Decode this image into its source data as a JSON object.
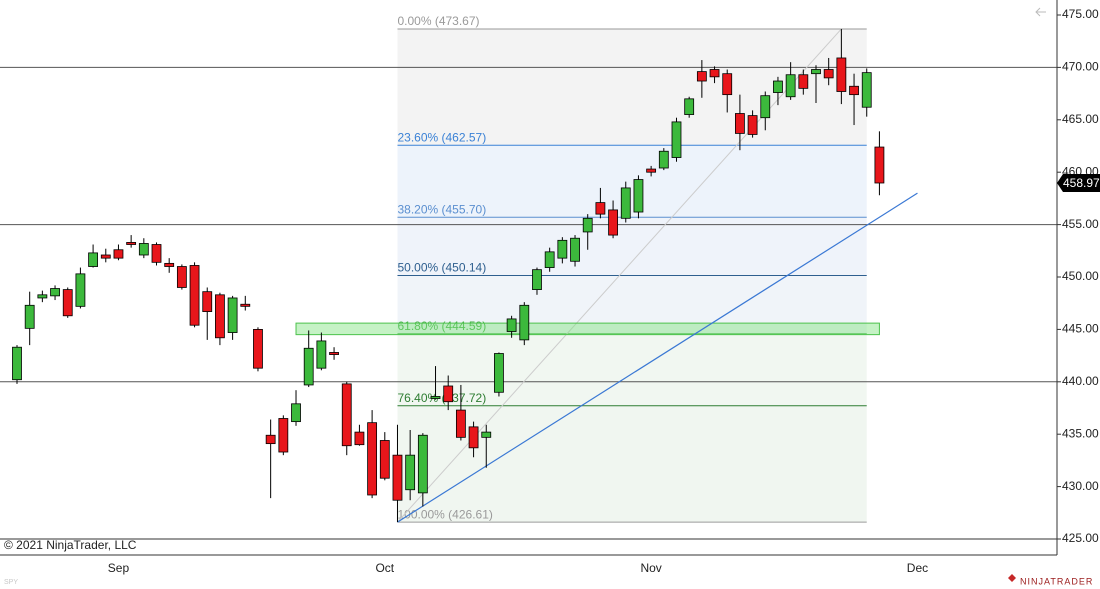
{
  "chart_data": {
    "type": "candlestick",
    "instrument": "SPY",
    "copyright": "© 2021 NinjaTrader, LLC",
    "brand": "NINJATRADER",
    "categories": [
      null,
      null,
      null,
      null,
      null,
      null,
      null,
      null,
      "Sep",
      null,
      null,
      null,
      null,
      null,
      null,
      null,
      null,
      null,
      null,
      null,
      null,
      null,
      null,
      null,
      null,
      null,
      null,
      null,
      null,
      "Oct",
      null,
      null,
      null,
      null,
      null,
      null,
      null,
      null,
      null,
      null,
      null,
      null,
      null,
      null,
      null,
      null,
      null,
      null,
      null,
      null,
      "Nov",
      null,
      null,
      null,
      null,
      null,
      null,
      null,
      null,
      null,
      null,
      null,
      null,
      null,
      null,
      null,
      null,
      null,
      null,
      null,
      null,
      "Dec"
    ],
    "open": [
      440.2,
      445.1,
      448.0,
      448.2,
      448.8,
      447.2,
      451.0,
      452.1,
      452.6,
      453.3,
      452.1,
      453.1,
      451.3,
      451.0,
      451.1,
      448.6,
      448.3,
      444.7,
      447.4,
      445.0,
      434.9,
      436.5,
      436.2,
      439.7,
      441.3,
      442.8,
      439.8,
      435.2,
      436.1,
      434.4,
      433.0,
      429.7,
      429.4,
      438.4,
      439.6,
      437.3,
      435.7,
      434.7,
      439.0,
      444.8,
      444.0,
      448.8,
      450.9,
      451.8,
      451.5,
      454.3,
      457.1,
      456.4,
      455.6,
      456.2,
      460.3,
      460.4,
      461.4,
      465.5,
      469.6,
      469.8,
      469.4,
      465.6,
      465.4,
      465.2,
      467.6,
      467.2,
      469.3,
      469.4,
      469.8,
      470.9,
      468.2,
      466.2,
      462.4,
      null,
      null,
      null
    ],
    "high": [
      443.5,
      448.6,
      448.7,
      449.2,
      449.0,
      450.9,
      453.1,
      452.7,
      453.1,
      454.0,
      453.7,
      453.3,
      451.8,
      451.2,
      451.4,
      449.0,
      448.5,
      448.2,
      448.2,
      445.2,
      436.4,
      436.8,
      439.2,
      444.9,
      444.7,
      443.3,
      440.0,
      435.9,
      437.3,
      435.2,
      435.9,
      435.4,
      435.1,
      441.5,
      440.6,
      439.7,
      436.2,
      435.9,
      442.8,
      446.3,
      447.6,
      450.9,
      452.8,
      453.8,
      454.0,
      456.0,
      458.5,
      457.3,
      459.1,
      459.7,
      460.6,
      462.3,
      465.2,
      467.2,
      470.7,
      470.1,
      469.8,
      467.4,
      465.9,
      467.7,
      469.1,
      470.5,
      469.8,
      470.2,
      470.9,
      473.67,
      469.4,
      469.9,
      463.9,
      null,
      null,
      null
    ],
    "low": [
      439.8,
      443.5,
      447.6,
      447.8,
      446.1,
      447.0,
      450.9,
      451.4,
      451.6,
      452.8,
      451.8,
      451.1,
      450.4,
      448.8,
      445.2,
      444.0,
      443.5,
      444.0,
      446.8,
      441.0,
      428.9,
      433.0,
      435.8,
      439.5,
      441.1,
      442.1,
      433.0,
      433.9,
      428.9,
      430.6,
      426.61,
      428.7,
      428.1,
      438.3,
      437.3,
      434.4,
      432.8,
      431.8,
      438.6,
      444.2,
      443.5,
      448.3,
      450.5,
      451.3,
      451.0,
      452.6,
      455.6,
      453.7,
      455.2,
      455.6,
      459.6,
      460.2,
      461.0,
      465.2,
      467.1,
      468.5,
      465.7,
      462.1,
      463.3,
      464.0,
      466.4,
      466.9,
      467.4,
      466.6,
      468.3,
      466.5,
      464.5,
      465.3,
      457.8,
      null,
      null,
      null
    ],
    "close": [
      443.3,
      447.3,
      448.3,
      448.9,
      446.3,
      450.3,
      452.3,
      451.8,
      451.8,
      453.1,
      453.2,
      451.4,
      451.0,
      449.0,
      445.4,
      446.7,
      444.2,
      448.0,
      447.2,
      441.3,
      434.1,
      433.3,
      437.9,
      443.2,
      443.9,
      442.6,
      433.9,
      434.0,
      429.2,
      430.8,
      428.7,
      433.0,
      434.9,
      438.6,
      438.1,
      434.7,
      433.7,
      435.2,
      442.7,
      446.0,
      447.3,
      450.7,
      452.4,
      453.5,
      453.7,
      455.6,
      456.0,
      454.0,
      458.5,
      459.3,
      460.0,
      462.0,
      464.8,
      467.0,
      468.7,
      469.1,
      467.4,
      463.7,
      463.6,
      467.3,
      468.7,
      469.3,
      468.0,
      469.8,
      469.0,
      467.7,
      467.4,
      469.5,
      458.97,
      null,
      null,
      null
    ],
    "up_color": "#3cb93c",
    "down_color": "#e8161b",
    "ylim": [
      425,
      475
    ],
    "yticks": [
      {
        "value": 425,
        "label": "425.00"
      },
      {
        "value": 430,
        "label": "430.00"
      },
      {
        "value": 435,
        "label": "435.00"
      },
      {
        "value": 440,
        "label": "440.00"
      },
      {
        "value": 445,
        "label": "445.00"
      },
      {
        "value": 450,
        "label": "450.00"
      },
      {
        "value": 455,
        "label": "455.00"
      },
      {
        "value": 460,
        "label": "460.00"
      },
      {
        "value": 465,
        "label": "465.00"
      },
      {
        "value": 470,
        "label": "470.00"
      },
      {
        "value": 475,
        "label": "475.00"
      }
    ],
    "last_price": 458.97,
    "horizontal_lines": [
      470,
      455,
      440
    ],
    "fibonacci": {
      "start": 30,
      "end": 67,
      "levels": [
        {
          "value": 473.67,
          "label": "0.00% (473.67)",
          "color": "#9a9a9a",
          "fill": "#f3f3f3"
        },
        {
          "value": 462.57,
          "label": "23.60% (462.57)",
          "color": "#3b82d6",
          "fill": "#edf3fb"
        },
        {
          "value": 455.7,
          "label": "38.20% (455.70)",
          "color": "#5b8fd0",
          "fill": "#eff3fa"
        },
        {
          "value": 450.14,
          "label": "50.00% (450.14)",
          "color": "#2e5f8f",
          "fill": "#f0f4f9"
        },
        {
          "value": 444.59,
          "label": "61.80% (444.59)",
          "color": "#45b045",
          "fill": "#f1f7f1"
        },
        {
          "value": 437.72,
          "label": "76.40% (437.72)",
          "color": "#2e7d32",
          "fill": "#f0f6f0"
        },
        {
          "value": 426.61,
          "label": "100.00% (426.61)",
          "color": "#9a9a9a"
        }
      ]
    },
    "trend_line": {
      "start": 30,
      "end": 71,
      "from": 426.61,
      "to": 458.0,
      "color": "#3a78d4"
    },
    "zone": {
      "start": 22,
      "end": 68,
      "from": 444.5,
      "to": 445.6,
      "color": "#7ee27e"
    }
  }
}
